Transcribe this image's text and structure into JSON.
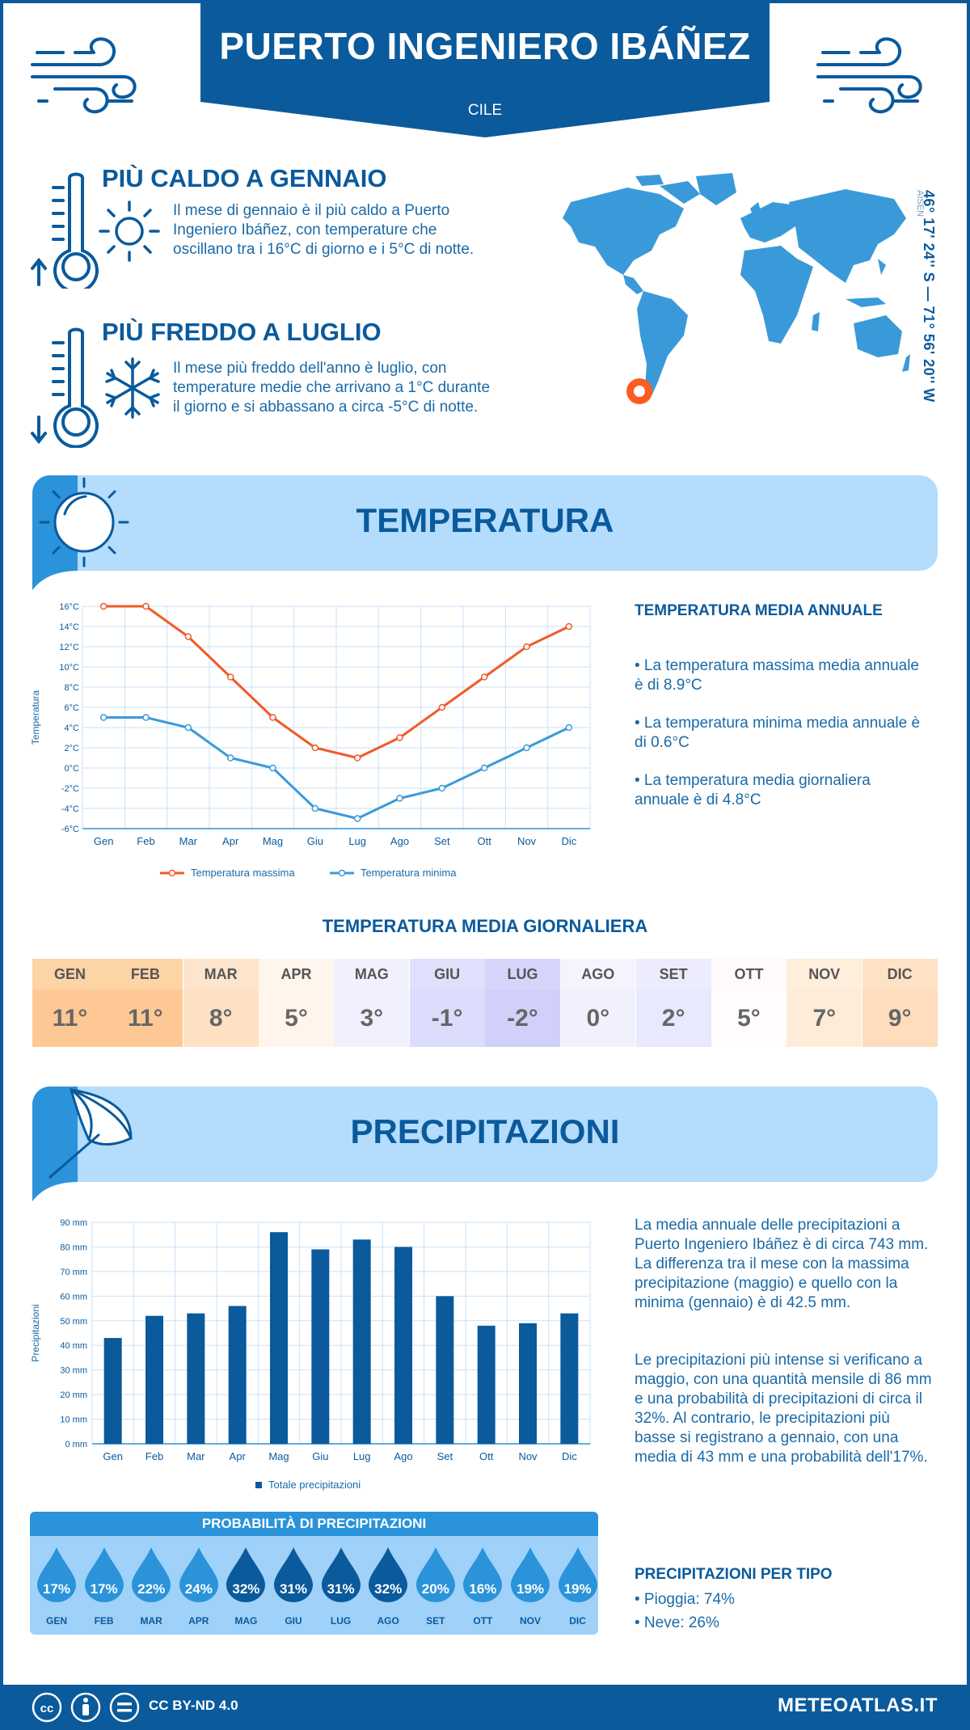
{
  "header": {
    "title": "PUERTO INGENIERO IBÁÑEZ",
    "country": "CILE"
  },
  "highlights": [
    {
      "title": "PIÙ CALDO A GENNAIO",
      "text": "Il mese di gennaio è il più caldo a Puerto Ingeniero Ibáñez, con temperature che oscillano tra i 16°C di giorno e i 5°C di notte."
    },
    {
      "title": "PIÙ FREDDO A LUGLIO",
      "text": "Il mese più freddo dell'anno è luglio, con temperature medie che arrivano a 1°C durante il giorno e si abbassano a circa -5°C di notte."
    }
  ],
  "location": {
    "coords": "46° 17' 24'' S — 71° 56' 20'' W",
    "region": "AISEN"
  },
  "temperature_section": {
    "title": "TEMPERATURA",
    "side_title": "TEMPERATURA MEDIA ANNUALE",
    "bullets": [
      "• La temperatura massima media annuale è di 8.9°C",
      "• La temperatura minima media annuale è di 0.6°C",
      "• La temperatura media giornaliera annuale è di 4.8°C"
    ]
  },
  "daily": {
    "title": "TEMPERATURA MEDIA GIORNALIERA",
    "months": [
      "GEN",
      "FEB",
      "MAR",
      "APR",
      "MAG",
      "GIU",
      "LUG",
      "AGO",
      "SET",
      "OTT",
      "NOV",
      "DIC"
    ],
    "values": [
      "11°",
      "11°",
      "8°",
      "5°",
      "3°",
      "-1°",
      "-2°",
      "0°",
      "2°",
      "5°",
      "7°",
      "9°"
    ],
    "head_colors": [
      "#fdd4a6",
      "#fdd4a6",
      "#fde4cc",
      "#fef5ec",
      "#f1f1fe",
      "#e0e0fd",
      "#d6d6fc",
      "#f4f4fe",
      "#ececfe",
      "#fffafa",
      "#feeedc",
      "#fee2c6"
    ],
    "body_colors": [
      "#fec895",
      "#fec895",
      "#fee0c2",
      "#fff5ec",
      "#f0f0fe",
      "#dcdcfc",
      "#d0d0fb",
      "#f1f1fe",
      "#e8e8fe",
      "#fffcfb",
      "#feebd8",
      "#fedcbc"
    ]
  },
  "precip_section": {
    "title": "PRECIPITAZIONI",
    "text1": "La media annuale delle precipitazioni a Puerto Ingeniero Ibáñez è di circa 743 mm. La differenza tra il mese con la massima precipitazione (maggio) e quello con la minima (gennaio) è di 42.5 mm.",
    "text2": "Le precipitazioni più intense si verificano a maggio, con una quantità mensile di 86 mm e una probabilità di precipitazioni di circa il 32%. Al contrario, le precipitazioni più basse si registrano a gennaio, con una media di 43 mm e una probabilità dell'17%.",
    "type_title": "PRECIPITAZIONI PER TIPO",
    "types": [
      "• Pioggia: 74%",
      "• Neve: 26%"
    ]
  },
  "probability": {
    "title": "PROBABILITÀ DI PRECIPITAZIONI",
    "months": [
      "GEN",
      "FEB",
      "MAR",
      "APR",
      "MAG",
      "GIU",
      "LUG",
      "AGO",
      "SET",
      "OTT",
      "NOV",
      "DIC"
    ],
    "values": [
      "17%",
      "17%",
      "22%",
      "24%",
      "32%",
      "31%",
      "31%",
      "32%",
      "20%",
      "16%",
      "19%",
      "19%"
    ],
    "colors": [
      "#2a93da",
      "#2a93da",
      "#2a93da",
      "#2a93da",
      "#0a5a9c",
      "#0a5a9c",
      "#0a5a9c",
      "#0a5a9c",
      "#2a93da",
      "#2a93da",
      "#2a93da",
      "#2a93da"
    ]
  },
  "footer": {
    "license": "CC BY-ND 4.0",
    "site": "METEOATLAS.IT"
  },
  "chart_data": [
    {
      "type": "line",
      "x": [
        "Gen",
        "Feb",
        "Mar",
        "Apr",
        "Mag",
        "Giu",
        "Lug",
        "Ago",
        "Set",
        "Ott",
        "Nov",
        "Dic"
      ],
      "series": [
        {
          "name": "Temperatura massima",
          "values": [
            16,
            16,
            13,
            9,
            5,
            2,
            1,
            3,
            6,
            9,
            12,
            14
          ],
          "color": "#f05a28"
        },
        {
          "name": "Temperatura minima",
          "values": [
            5,
            5,
            4,
            1,
            0,
            -4,
            -5,
            -3,
            -2,
            0,
            2,
            4
          ],
          "color": "#3a9ad9"
        }
      ],
      "ylabel": "Temperatura",
      "ylim": [
        -6,
        16
      ],
      "yticks": [
        "-6°C",
        "-4°C",
        "-2°C",
        "0°C",
        "2°C",
        "4°C",
        "6°C",
        "8°C",
        "10°C",
        "12°C",
        "14°C",
        "16°C"
      ],
      "grid": true,
      "legend": "bottom"
    },
    {
      "type": "bar",
      "categories": [
        "Gen",
        "Feb",
        "Mar",
        "Apr",
        "Mag",
        "Giu",
        "Lug",
        "Ago",
        "Set",
        "Ott",
        "Nov",
        "Dic"
      ],
      "values": [
        43,
        52,
        53,
        56,
        86,
        79,
        83,
        80,
        60,
        48,
        49,
        53
      ],
      "series_name": "Totale precipitazioni",
      "color": "#0a5a9c",
      "ylabel": "Precipitazioni",
      "ylim": [
        0,
        90
      ],
      "yticks": [
        "0 mm",
        "10 mm",
        "20 mm",
        "30 mm",
        "40 mm",
        "50 mm",
        "60 mm",
        "70 mm",
        "80 mm",
        "90 mm"
      ],
      "grid": true,
      "legend": "bottom"
    }
  ]
}
